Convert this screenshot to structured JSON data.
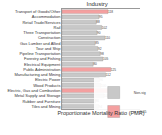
{
  "chart_data": {
    "type": "bar",
    "orientation": "horizontal",
    "title": "Industry",
    "x_label": "Proportionate Mortality Ratio (PMR)",
    "categories": [
      "Transport of Goods/Other",
      "Accommodation",
      "Retail Trade/Services",
      "Rail",
      "Three Transportation",
      "Construction",
      "Gas Lumber and Allied",
      "Tour and Ship",
      "Pipeline Transportation",
      "Forestry and Fishing",
      "Electrical Equipment",
      "Public Administration",
      "Manufacturing and Mining",
      "Electric Power",
      "Wood Products",
      "Electric, Gas and Combustion",
      "Metal Supply and Storage",
      "Rubber and Furniture",
      "Tiles and Mining"
    ],
    "series": [
      {
        "name": "Non-sig",
        "color": "#c8c8c8",
        "values": [
          null,
          95,
          88,
          102,
          90,
          110,
          85,
          92,
          98,
          105,
          80,
          null,
          112,
          96,
          100,
          null,
          108,
          86,
          94
        ]
      },
      {
        "name": "p < 0.05",
        "color": "#f4a0a0",
        "values": [
          118,
          null,
          null,
          null,
          null,
          null,
          null,
          null,
          null,
          null,
          null,
          125,
          null,
          null,
          null,
          130,
          null,
          null,
          null
        ]
      }
    ],
    "xlim": [
      0,
      200
    ],
    "tick_labels": "y",
    "legend": "bottom right",
    "data_labels": true
  }
}
